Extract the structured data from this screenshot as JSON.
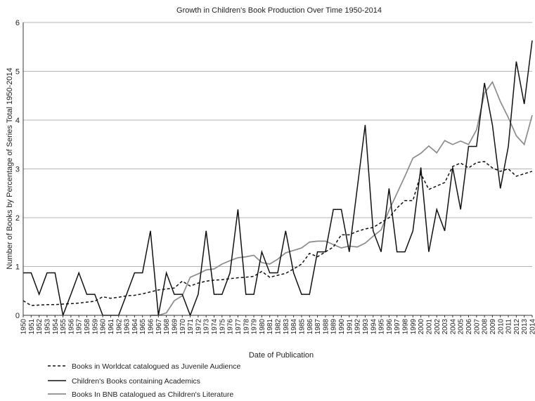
{
  "chart_data": {
    "type": "line",
    "title": "Growth in Children's Book Production Over Time 1950-2014",
    "xlabel": "Date of Publication",
    "ylabel": "Number of Books by Percentage of Series Total  1950-2014",
    "ylim": [
      0,
      6
    ],
    "yticks": [
      "0",
      "1",
      "2",
      "3",
      "4",
      "5",
      "6"
    ],
    "grid": "horizontal",
    "legend_position": "bottom-left",
    "categories": [
      "1950",
      "1951",
      "1952",
      "1953",
      "1954",
      "1955",
      "1956",
      "1957",
      "1958",
      "1959",
      "1960",
      "1961",
      "1962",
      "1963",
      "1964",
      "1965",
      "1966",
      "1967",
      "1968",
      "1969",
      "1970",
      "1971",
      "1972",
      "1973",
      "1974",
      "1975",
      "1976",
      "1977",
      "1978",
      "1979",
      "1980",
      "1981",
      "1982",
      "1983",
      "1984",
      "1985",
      "1986",
      "1987",
      "1988",
      "1989",
      "1990",
      "1991",
      "1992",
      "1993",
      "1994",
      "1995",
      "1996",
      "1997",
      "1998",
      "1999",
      "2000",
      "2001",
      "2002",
      "2003",
      "2004",
      "2005",
      "2006",
      "2007",
      "2008",
      "2009",
      "2010",
      "2011",
      "2012",
      "2013",
      "2014"
    ],
    "series": [
      {
        "name": "Books in Worldcat catalogued as Juvenile Audience",
        "style": "dashed",
        "color": "#111111",
        "values": [
          0.3,
          0.2,
          0.21,
          0.22,
          0.22,
          0.23,
          0.24,
          0.25,
          0.27,
          0.29,
          0.38,
          0.35,
          0.37,
          0.4,
          0.41,
          0.44,
          0.48,
          0.52,
          0.54,
          0.56,
          0.7,
          0.6,
          0.66,
          0.7,
          0.72,
          0.73,
          0.75,
          0.77,
          0.78,
          0.8,
          0.9,
          0.78,
          0.82,
          0.86,
          0.95,
          1.05,
          1.27,
          1.2,
          1.3,
          1.4,
          1.65,
          1.65,
          1.72,
          1.77,
          1.8,
          1.9,
          2.0,
          2.2,
          2.35,
          2.35,
          2.9,
          2.58,
          2.65,
          2.72,
          3.05,
          3.12,
          3.02,
          3.13,
          3.15,
          3.02,
          2.95,
          3.0,
          2.85,
          2.9,
          2.95
        ]
      },
      {
        "name": "Children's Books containing Academics",
        "style": "solid",
        "color": "#111111",
        "values": [
          0.87,
          0.87,
          0.43,
          0.87,
          0.87,
          0,
          0.43,
          0.87,
          0.43,
          0.43,
          0,
          0,
          0,
          0.43,
          0.87,
          0.87,
          1.73,
          0,
          0.87,
          0.43,
          0.43,
          0,
          0.43,
          1.73,
          0.43,
          0.43,
          0.87,
          2.17,
          0.43,
          0.43,
          1.3,
          0.87,
          0.87,
          1.73,
          0.87,
          0.43,
          0.43,
          1.3,
          1.3,
          2.17,
          2.17,
          1.3,
          2.6,
          3.9,
          1.73,
          1.3,
          2.6,
          1.3,
          1.3,
          1.73,
          3.03,
          1.3,
          2.17,
          1.73,
          3.03,
          2.17,
          3.46,
          3.46,
          4.76,
          3.9,
          2.6,
          3.46,
          5.2,
          4.33,
          5.63
        ]
      },
      {
        "name": "Books In BNB catalogued as Children's Literature",
        "style": "solid",
        "color": "#8c8c8c",
        "values": [
          null,
          null,
          null,
          null,
          null,
          null,
          null,
          null,
          null,
          null,
          null,
          null,
          null,
          null,
          null,
          null,
          0,
          0,
          0.05,
          0.3,
          0.4,
          0.78,
          0.85,
          0.93,
          0.95,
          1.05,
          1.12,
          1.18,
          1.2,
          1.23,
          1.08,
          1.05,
          1.15,
          1.28,
          1.33,
          1.38,
          1.5,
          1.52,
          1.52,
          1.45,
          1.38,
          1.42,
          1.4,
          1.48,
          1.62,
          1.75,
          2.15,
          2.5,
          2.85,
          3.22,
          3.32,
          3.47,
          3.33,
          3.58,
          3.5,
          3.57,
          3.5,
          3.8,
          4.55,
          4.78,
          4.38,
          4.05,
          3.68,
          3.5,
          4.1
        ]
      }
    ]
  }
}
